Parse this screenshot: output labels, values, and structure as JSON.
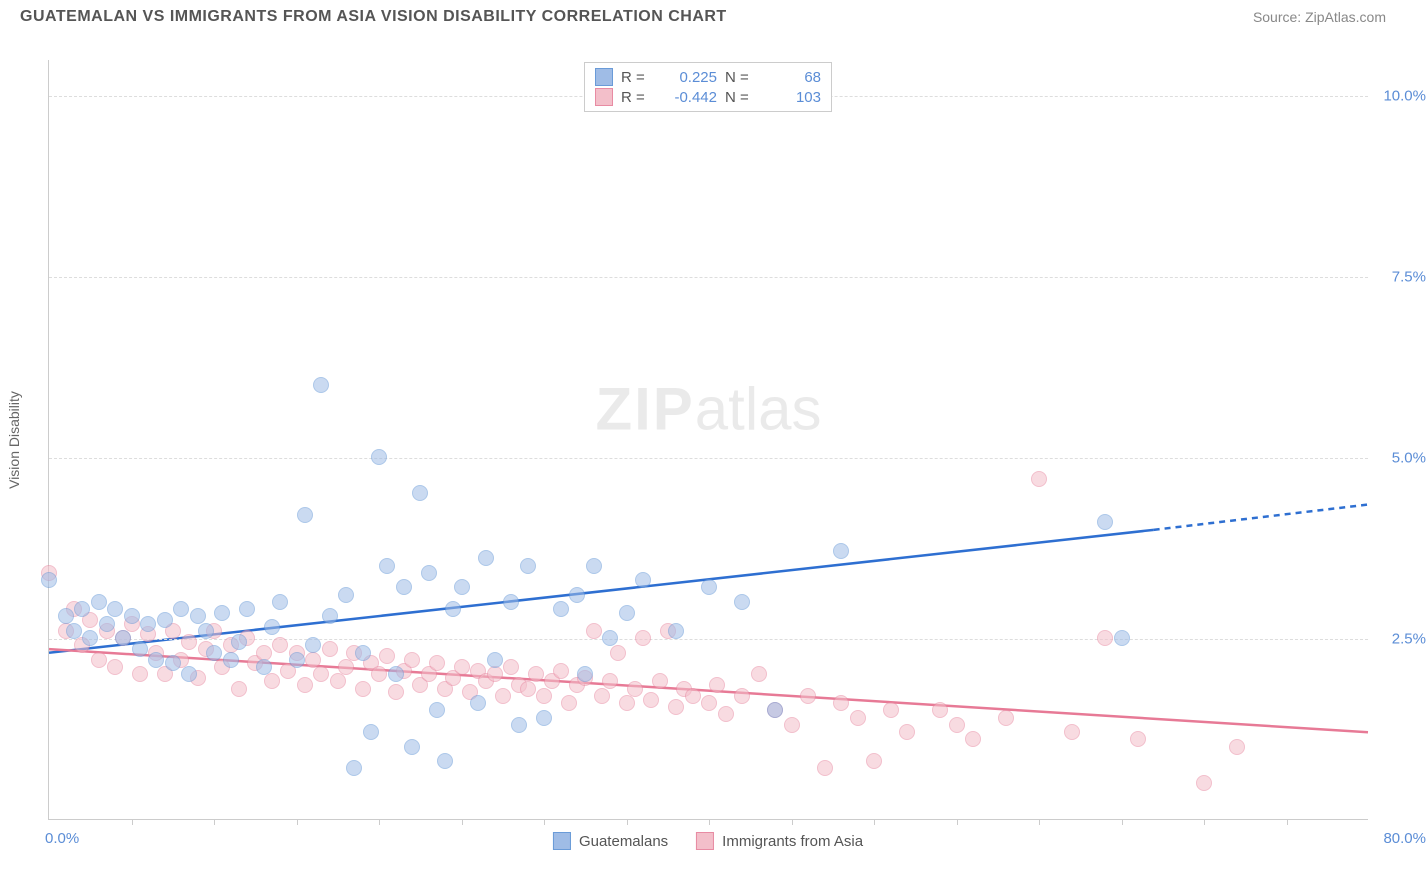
{
  "header": {
    "title": "GUATEMALAN VS IMMIGRANTS FROM ASIA VISION DISABILITY CORRELATION CHART",
    "source": "Source: ZipAtlas.com"
  },
  "ylabel": "Vision Disability",
  "watermark": {
    "zip": "ZIP",
    "rest": "atlas"
  },
  "series": {
    "blue": {
      "label": "Guatemalans",
      "fill": "#9fbce6",
      "stroke": "#6a9bd8",
      "line_color": "#2e6fd1",
      "r_value": "0.225",
      "n_value": "68",
      "trend": {
        "x1": 0,
        "y1": 2.3,
        "x2": 67,
        "y2": 4.0,
        "dash_to": 80,
        "dash_y": 4.35
      },
      "points": [
        [
          0,
          3.3
        ],
        [
          1,
          2.8
        ],
        [
          1.5,
          2.6
        ],
        [
          2,
          2.9
        ],
        [
          2.5,
          2.5
        ],
        [
          3,
          3.0
        ],
        [
          3.5,
          2.7
        ],
        [
          4,
          2.9
        ],
        [
          4.5,
          2.5
        ],
        [
          5,
          2.8
        ],
        [
          5.5,
          2.35
        ],
        [
          6,
          2.7
        ],
        [
          6.5,
          2.2
        ],
        [
          7,
          2.75
        ],
        [
          7.5,
          2.15
        ],
        [
          8,
          2.9
        ],
        [
          8.5,
          2.0
        ],
        [
          9,
          2.8
        ],
        [
          9.5,
          2.6
        ],
        [
          10,
          2.3
        ],
        [
          10.5,
          2.85
        ],
        [
          11,
          2.2
        ],
        [
          11.5,
          2.45
        ],
        [
          12,
          2.9
        ],
        [
          13,
          2.1
        ],
        [
          13.5,
          2.65
        ],
        [
          14,
          3.0
        ],
        [
          15,
          2.2
        ],
        [
          15.5,
          4.2
        ],
        [
          16,
          2.4
        ],
        [
          16.5,
          6.0
        ],
        [
          17,
          2.8
        ],
        [
          18,
          3.1
        ],
        [
          18.5,
          0.7
        ],
        [
          19,
          2.3
        ],
        [
          19.5,
          1.2
        ],
        [
          20,
          5.0
        ],
        [
          20.5,
          3.5
        ],
        [
          21,
          2.0
        ],
        [
          21.5,
          3.2
        ],
        [
          22,
          1.0
        ],
        [
          22.5,
          4.5
        ],
        [
          23,
          3.4
        ],
        [
          23.5,
          1.5
        ],
        [
          24,
          0.8
        ],
        [
          24.5,
          2.9
        ],
        [
          25,
          3.2
        ],
        [
          26,
          1.6
        ],
        [
          26.5,
          3.6
        ],
        [
          27,
          2.2
        ],
        [
          28,
          3.0
        ],
        [
          28.5,
          1.3
        ],
        [
          29,
          3.5
        ],
        [
          30,
          1.4
        ],
        [
          31,
          2.9
        ],
        [
          32,
          3.1
        ],
        [
          32.5,
          2.0
        ],
        [
          33,
          3.5
        ],
        [
          34,
          2.5
        ],
        [
          35,
          2.85
        ],
        [
          36,
          3.3
        ],
        [
          38,
          2.6
        ],
        [
          40,
          3.2
        ],
        [
          42,
          3.0
        ],
        [
          44,
          1.5
        ],
        [
          48,
          3.7
        ],
        [
          64,
          4.1
        ],
        [
          65,
          2.5
        ]
      ]
    },
    "pink": {
      "label": "Immigrants from Asia",
      "fill": "#f3bfca",
      "stroke": "#e88ba3",
      "line_color": "#e77a96",
      "r_value": "-0.442",
      "n_value": "103",
      "trend": {
        "x1": 0,
        "y1": 2.35,
        "x2": 80,
        "y2": 1.2
      },
      "points": [
        [
          0,
          3.4
        ],
        [
          1,
          2.6
        ],
        [
          1.5,
          2.9
        ],
        [
          2,
          2.4
        ],
        [
          2.5,
          2.75
        ],
        [
          3,
          2.2
        ],
        [
          3.5,
          2.6
        ],
        [
          4,
          2.1
        ],
        [
          4.5,
          2.5
        ],
        [
          5,
          2.7
        ],
        [
          5.5,
          2.0
        ],
        [
          6,
          2.55
        ],
        [
          6.5,
          2.3
        ],
        [
          7,
          2.0
        ],
        [
          7.5,
          2.6
        ],
        [
          8,
          2.2
        ],
        [
          8.5,
          2.45
        ],
        [
          9,
          1.95
        ],
        [
          9.5,
          2.35
        ],
        [
          10,
          2.6
        ],
        [
          10.5,
          2.1
        ],
        [
          11,
          2.4
        ],
        [
          11.5,
          1.8
        ],
        [
          12,
          2.5
        ],
        [
          12.5,
          2.15
        ],
        [
          13,
          2.3
        ],
        [
          13.5,
          1.9
        ],
        [
          14,
          2.4
        ],
        [
          14.5,
          2.05
        ],
        [
          15,
          2.3
        ],
        [
          15.5,
          1.85
        ],
        [
          16,
          2.2
        ],
        [
          16.5,
          2.0
        ],
        [
          17,
          2.35
        ],
        [
          17.5,
          1.9
        ],
        [
          18,
          2.1
        ],
        [
          18.5,
          2.3
        ],
        [
          19,
          1.8
        ],
        [
          19.5,
          2.15
        ],
        [
          20,
          2.0
        ],
        [
          20.5,
          2.25
        ],
        [
          21,
          1.75
        ],
        [
          21.5,
          2.05
        ],
        [
          22,
          2.2
        ],
        [
          22.5,
          1.85
        ],
        [
          23,
          2.0
        ],
        [
          23.5,
          2.15
        ],
        [
          24,
          1.8
        ],
        [
          24.5,
          1.95
        ],
        [
          25,
          2.1
        ],
        [
          25.5,
          1.75
        ],
        [
          26,
          2.05
        ],
        [
          26.5,
          1.9
        ],
        [
          27,
          2.0
        ],
        [
          27.5,
          1.7
        ],
        [
          28,
          2.1
        ],
        [
          28.5,
          1.85
        ],
        [
          29,
          1.8
        ],
        [
          29.5,
          2.0
        ],
        [
          30,
          1.7
        ],
        [
          30.5,
          1.9
        ],
        [
          31,
          2.05
        ],
        [
          31.5,
          1.6
        ],
        [
          32,
          1.85
        ],
        [
          32.5,
          1.95
        ],
        [
          33,
          2.6
        ],
        [
          33.5,
          1.7
        ],
        [
          34,
          1.9
        ],
        [
          34.5,
          2.3
        ],
        [
          35,
          1.6
        ],
        [
          35.5,
          1.8
        ],
        [
          36,
          2.5
        ],
        [
          36.5,
          1.65
        ],
        [
          37,
          1.9
        ],
        [
          37.5,
          2.6
        ],
        [
          38,
          1.55
        ],
        [
          38.5,
          1.8
        ],
        [
          39,
          1.7
        ],
        [
          40,
          1.6
        ],
        [
          40.5,
          1.85
        ],
        [
          41,
          1.45
        ],
        [
          42,
          1.7
        ],
        [
          43,
          2.0
        ],
        [
          44,
          1.5
        ],
        [
          45,
          1.3
        ],
        [
          46,
          1.7
        ],
        [
          47,
          0.7
        ],
        [
          48,
          1.6
        ],
        [
          49,
          1.4
        ],
        [
          50,
          0.8
        ],
        [
          51,
          1.5
        ],
        [
          52,
          1.2
        ],
        [
          54,
          1.5
        ],
        [
          55,
          1.3
        ],
        [
          56,
          1.1
        ],
        [
          58,
          1.4
        ],
        [
          60,
          4.7
        ],
        [
          62,
          1.2
        ],
        [
          64,
          2.5
        ],
        [
          66,
          1.1
        ],
        [
          70,
          0.5
        ],
        [
          72,
          1.0
        ]
      ]
    }
  },
  "axes": {
    "x": {
      "min": 0,
      "max": 80,
      "label_min": "0.0%",
      "label_max": "80.0%",
      "ticks": [
        5,
        10,
        15,
        20,
        25,
        30,
        35,
        40,
        45,
        50,
        55,
        60,
        65,
        70,
        75
      ]
    },
    "y": {
      "min": 0,
      "max": 10.5,
      "gridlines": [
        {
          "v": 2.5,
          "label": "2.5%"
        },
        {
          "v": 5.0,
          "label": "5.0%"
        },
        {
          "v": 7.5,
          "label": "7.5%"
        },
        {
          "v": 10.0,
          "label": "10.0%"
        }
      ]
    }
  },
  "colors": {
    "text_muted": "#888888",
    "text_title": "#555555",
    "axis_value": "#5b8dd6"
  }
}
